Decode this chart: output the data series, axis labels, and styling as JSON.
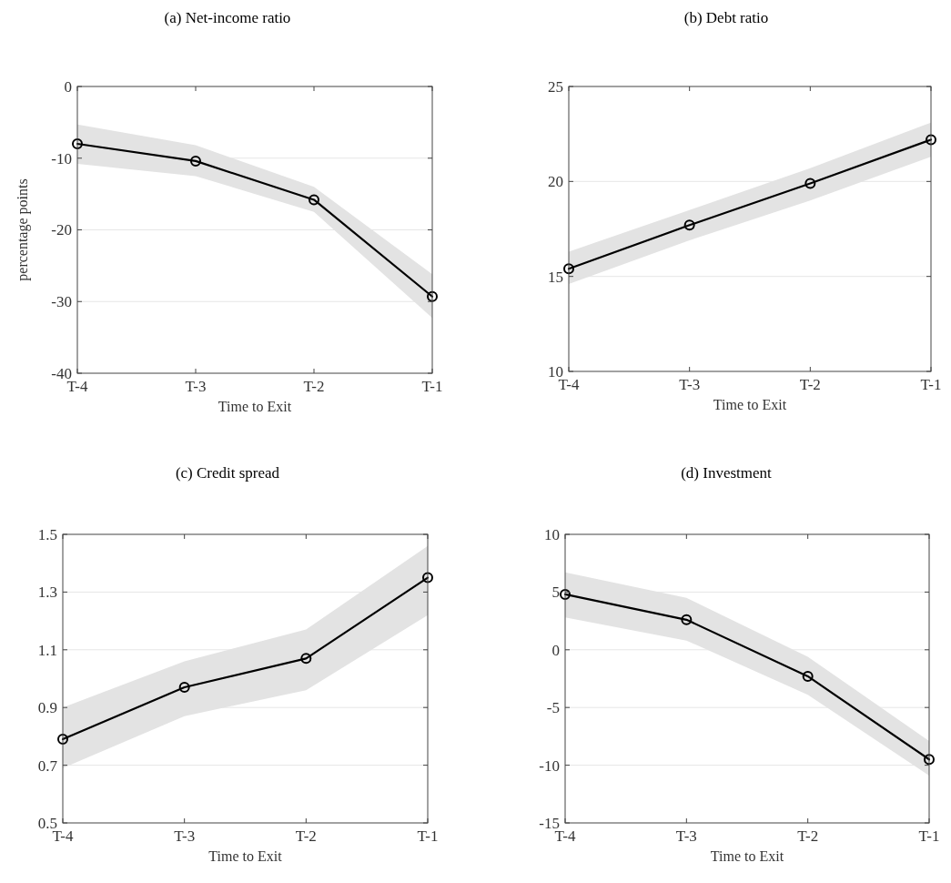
{
  "chart_data": [
    {
      "type": "line",
      "title": "(a) Net-income ratio",
      "xlabel": "Time to Exit",
      "ylabel": "percentage points",
      "categories": [
        "T-4",
        "T-3",
        "T-2",
        "T-1"
      ],
      "ylim": [
        -40,
        0
      ],
      "yticks": [
        -40,
        -30,
        -20,
        -10,
        0
      ],
      "grid": "y",
      "marker": "circle",
      "line_style": "solid",
      "series": [
        {
          "color": "#000000",
          "values": [
            -8.0,
            -10.4,
            -15.8,
            -29.3
          ],
          "lower": [
            -10.8,
            -12.5,
            -17.5,
            -32.3
          ],
          "upper": [
            -5.3,
            -8.2,
            -14.0,
            -26.2
          ]
        }
      ]
    },
    {
      "type": "line",
      "title": "(b) Debt ratio",
      "xlabel": "Time to Exit",
      "categories": [
        "T-4",
        "T-3",
        "T-2",
        "T-1"
      ],
      "ylim": [
        10,
        25
      ],
      "yticks": [
        10,
        15,
        20,
        25
      ],
      "grid": "y",
      "marker": "circle",
      "line_style": "solid",
      "series": [
        {
          "color": "#000000",
          "values": [
            15.4,
            17.7,
            19.9,
            22.2
          ],
          "lower": [
            14.6,
            16.9,
            19.0,
            21.3
          ],
          "upper": [
            16.3,
            18.5,
            20.7,
            23.1
          ]
        }
      ]
    },
    {
      "type": "line",
      "title": "(c) Credit spread",
      "xlabel": "Time to Exit",
      "categories": [
        "T-4",
        "T-3",
        "T-2",
        "T-1"
      ],
      "ylim": [
        0.5,
        1.5
      ],
      "yticks": [
        0.5,
        0.7,
        0.9,
        1.1,
        1.3,
        1.5
      ],
      "grid": "y",
      "marker": "circle",
      "line_style": "solid",
      "series": [
        {
          "color": "#000000",
          "values": [
            0.79,
            0.97,
            1.07,
            1.35
          ],
          "lower": [
            0.69,
            0.87,
            0.96,
            1.22
          ],
          "upper": [
            0.9,
            1.06,
            1.17,
            1.46
          ]
        }
      ]
    },
    {
      "type": "line",
      "title": "(d) Investment",
      "xlabel": "Time to Exit",
      "categories": [
        "T-4",
        "T-3",
        "T-2",
        "T-1"
      ],
      "ylim": [
        -15,
        10
      ],
      "yticks": [
        -15,
        -10,
        -5,
        0,
        5,
        10
      ],
      "grid": "y",
      "marker": "circle",
      "line_style": "solid",
      "series": [
        {
          "color": "#000000",
          "values": [
            4.8,
            2.6,
            -2.3,
            -9.5
          ],
          "lower": [
            2.8,
            0.8,
            -3.9,
            -10.9
          ],
          "upper": [
            6.7,
            4.5,
            -0.6,
            -7.9
          ]
        }
      ]
    }
  ]
}
